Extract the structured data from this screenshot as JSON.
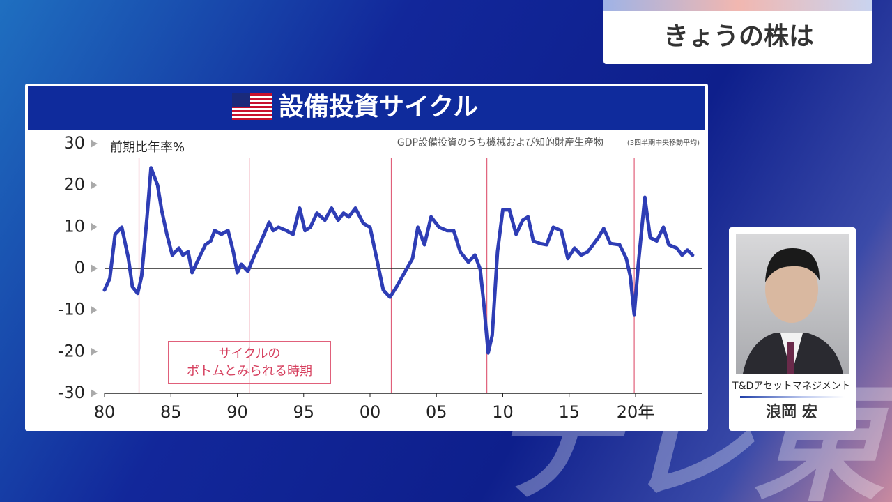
{
  "header": {
    "program": "きょうの株は",
    "watermark": "テレ東"
  },
  "guest": {
    "company": "T&Dアセットマネジメント",
    "name": "浪岡 宏"
  },
  "chart_data": {
    "type": "line",
    "title": "設備投資サイクル",
    "y_label": "前期比年率%",
    "subtitle": "GDP設備投資のうち機械および知的財産生産物",
    "subtitle_note": "(3四半期中央移動平均)",
    "annotation": [
      "サイクルの",
      "ボトムとみられる時期"
    ],
    "color": "#2e3db5",
    "x": [
      1980.0,
      1980.4,
      1980.8,
      1981.3,
      1981.8,
      1982.1,
      1982.5,
      1982.8,
      1983.2,
      1983.5,
      1984.0,
      1984.3,
      1984.7,
      1985.1,
      1985.6,
      1985.9,
      1986.3,
      1986.6,
      1987.1,
      1987.6,
      1988.0,
      1988.3,
      1988.8,
      1989.3,
      1989.7,
      1990.0,
      1990.3,
      1990.8,
      1991.3,
      1991.8,
      1992.4,
      1992.7,
      1993.1,
      1993.7,
      1994.2,
      1994.7,
      1995.1,
      1995.5,
      1996.0,
      1996.6,
      1997.1,
      1997.6,
      1998.0,
      1998.4,
      1998.9,
      1999.5,
      2000.0,
      2000.5,
      2001.0,
      2001.5,
      2002.0,
      2002.6,
      2003.2,
      2003.6,
      2004.1,
      2004.6,
      2005.2,
      2005.8,
      2006.3,
      2006.8,
      2007.4,
      2007.9,
      2008.3,
      2008.6,
      2008.9,
      2009.2,
      2009.6,
      2010.0,
      2010.5,
      2011.0,
      2011.5,
      2011.9,
      2012.3,
      2012.8,
      2013.3,
      2013.8,
      2014.4,
      2014.9,
      2015.4,
      2015.9,
      2016.4,
      2017.2,
      2017.6,
      2018.1,
      2018.8,
      2019.3,
      2019.6,
      2019.9,
      2020.2,
      2020.7,
      2021.1,
      2021.6,
      2022.1,
      2022.5,
      2023.1,
      2023.5,
      2023.9,
      2024.3
    ],
    "values": [
      -5.2,
      -2.4,
      8.2,
      9.9,
      2.4,
      -4.4,
      -6,
      -1.8,
      12.4,
      24.2,
      20,
      14.1,
      8.2,
      3.2,
      4.9,
      3.2,
      4,
      -1,
      2.4,
      5.7,
      6.6,
      9.1,
      8.2,
      9.1,
      4,
      -1,
      1,
      -0.7,
      3.2,
      6.6,
      11.1,
      9.1,
      9.9,
      9.1,
      8.2,
      14.5,
      9.1,
      9.9,
      13.3,
      11.6,
      14.5,
      11.6,
      13.3,
      12.4,
      14.5,
      10.8,
      9.9,
      2.4,
      -5.2,
      -6.9,
      -4.4,
      -1,
      2.4,
      9.9,
      5.7,
      12.4,
      9.9,
      9.1,
      9.1,
      4,
      1.5,
      3.2,
      -0.2,
      -9.4,
      -20.3,
      -16.1,
      4,
      14.1,
      14.1,
      8.2,
      11.6,
      12.4,
      6.6,
      6,
      5.7,
      9.9,
      9.1,
      2.4,
      4.9,
      3.2,
      4,
      7.4,
      9.6,
      6,
      5.7,
      2.4,
      -1.8,
      -11.1,
      0.7,
      17.1,
      7.4,
      6.6,
      9.9,
      5.7,
      4.9,
      3.2,
      4.4,
      3.2
    ],
    "bottom_lines": [
      1982.6,
      1990.9,
      2001.6,
      2008.8,
      2019.9
    ],
    "xlim": [
      1980,
      2024.6
    ],
    "xticks": [
      {
        "value": 1980,
        "label": "80"
      },
      {
        "value": 1985,
        "label": "85"
      },
      {
        "value": 1990,
        "label": "90"
      },
      {
        "value": 1995,
        "label": "95"
      },
      {
        "value": 2000,
        "label": "00"
      },
      {
        "value": 2005,
        "label": "05"
      },
      {
        "value": 2010,
        "label": "10"
      },
      {
        "value": 2015,
        "label": "15"
      },
      {
        "value": 2020,
        "label": "20年"
      }
    ],
    "ylim": [
      -30,
      30
    ],
    "yticks": [
      30,
      20,
      10,
      0,
      -10,
      -20,
      -30
    ]
  }
}
